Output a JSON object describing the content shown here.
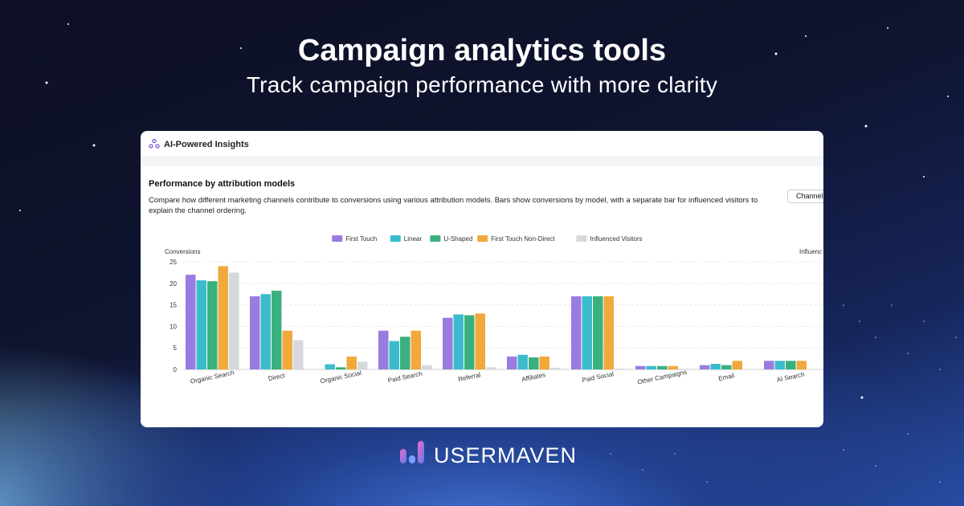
{
  "header": {
    "title": "Campaign analytics tools",
    "subtitle": "Track campaign performance with more clarity"
  },
  "card": {
    "title": "AI-Powered Insights",
    "section_title": "Performance by attribution models",
    "description": "Compare how different marketing channels contribute to conversions using various attribution models. Bars show conversions by model, with a separate bar for influenced visitors to explain the channel ordering.",
    "button": "Channel"
  },
  "chart_data": {
    "type": "bar",
    "y_label": "Conversions",
    "y2_label": "Influenc",
    "categories": [
      "Organic Search",
      "Direct",
      "Organic Social",
      "Paid Search",
      "Referral",
      "Affiliates",
      "Paid Social",
      "Other Campaigns",
      "Email",
      "AI Search"
    ],
    "series": [
      {
        "name": "First Touch",
        "color": "#9b7be0",
        "values": [
          22,
          17,
          0,
          9,
          12,
          3,
          17,
          0.8,
          1,
          2
        ]
      },
      {
        "name": "Linear",
        "color": "#3bbccc",
        "values": [
          20.7,
          17.5,
          1.2,
          6.6,
          12.8,
          3.4,
          17,
          0.8,
          1.3,
          2
        ]
      },
      {
        "name": "U-Shaped",
        "color": "#3bb07f",
        "values": [
          20.5,
          18.3,
          0.5,
          7.6,
          12.6,
          2.8,
          17,
          0.8,
          1,
          2
        ]
      },
      {
        "name": "First Touch Non-Direct",
        "color": "#f2a93b",
        "values": [
          24,
          9,
          3,
          9,
          13,
          3,
          17,
          0.8,
          2,
          2
        ]
      },
      {
        "name": "Influenced Visitors",
        "color": "#d5d8dd",
        "values": [
          22.5,
          6.8,
          1.8,
          1,
          0.5,
          0.4,
          0.2,
          0.2,
          0,
          0
        ]
      }
    ],
    "ylim": [
      0,
      25
    ],
    "yticks": [
      0,
      5,
      10,
      15,
      20,
      25
    ],
    "grid": true
  },
  "logo": "USERMAVEN"
}
